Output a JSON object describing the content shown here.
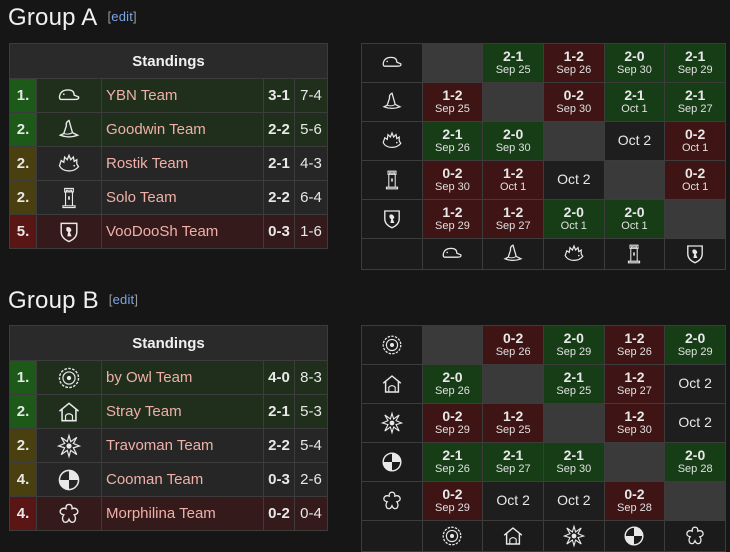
{
  "groups": [
    {
      "title": "Group A",
      "edit": "edit",
      "standings_header": "Standings",
      "teams": [
        {
          "rank": "1.",
          "name": "YBN Team",
          "record": "3-1",
          "maps": "7-4",
          "status": "up",
          "icon": "cap-icon"
        },
        {
          "rank": "2.",
          "name": "Goodwin Team",
          "record": "2-2",
          "maps": "5-6",
          "status": "up",
          "icon": "wizard-hat-icon"
        },
        {
          "rank": "2.",
          "name": "Rostik Team",
          "record": "2-1",
          "maps": "4-3",
          "status": "mid",
          "icon": "hedgehog-icon"
        },
        {
          "rank": "2.",
          "name": "Solo Team",
          "record": "2-2",
          "maps": "6-4",
          "status": "mid",
          "icon": "tower-icon"
        },
        {
          "rank": "5.",
          "name": "VooDooSh Team",
          "record": "0-3",
          "maps": "1-6",
          "status": "down",
          "icon": "shield-icon"
        }
      ],
      "matrix": [
        [
          {
            "t": "self"
          },
          {
            "t": "win",
            "s": "2-1",
            "d": "Sep 25"
          },
          {
            "t": "loss",
            "s": "1-2",
            "d": "Sep 26"
          },
          {
            "t": "win",
            "s": "2-0",
            "d": "Sep 30"
          },
          {
            "t": "win",
            "s": "2-1",
            "d": "Sep 29"
          }
        ],
        [
          {
            "t": "loss",
            "s": "1-2",
            "d": "Sep 25"
          },
          {
            "t": "self"
          },
          {
            "t": "loss",
            "s": "0-2",
            "d": "Sep 30"
          },
          {
            "t": "win",
            "s": "2-1",
            "d": "Oct 1"
          },
          {
            "t": "win",
            "s": "2-1",
            "d": "Sep 27"
          }
        ],
        [
          {
            "t": "win",
            "s": "2-1",
            "d": "Sep 26"
          },
          {
            "t": "win",
            "s": "2-0",
            "d": "Sep 30"
          },
          {
            "t": "self"
          },
          {
            "t": "plain",
            "d": "Oct 2"
          },
          {
            "t": "loss",
            "s": "0-2",
            "d": "Oct 1"
          }
        ],
        [
          {
            "t": "loss",
            "s": "0-2",
            "d": "Sep 30"
          },
          {
            "t": "loss",
            "s": "1-2",
            "d": "Oct 1"
          },
          {
            "t": "plain",
            "d": "Oct 2"
          },
          {
            "t": "self"
          },
          {
            "t": "loss",
            "s": "0-2",
            "d": "Oct 1"
          }
        ],
        [
          {
            "t": "loss",
            "s": "1-2",
            "d": "Sep 29"
          },
          {
            "t": "loss",
            "s": "1-2",
            "d": "Sep 27"
          },
          {
            "t": "win",
            "s": "2-0",
            "d": "Oct 1"
          },
          {
            "t": "win",
            "s": "2-0",
            "d": "Oct 1"
          },
          {
            "t": "self"
          }
        ]
      ]
    },
    {
      "title": "Group B",
      "edit": "edit",
      "standings_header": "Standings",
      "teams": [
        {
          "rank": "1.",
          "name": "by Owl Team",
          "record": "4-0",
          "maps": "8-3",
          "status": "up",
          "icon": "gear-badge-icon"
        },
        {
          "rank": "2.",
          "name": "Stray Team",
          "record": "2-1",
          "maps": "5-3",
          "status": "up",
          "icon": "house-icon"
        },
        {
          "rank": "2.",
          "name": "Travoman Team",
          "record": "2-2",
          "maps": "5-4",
          "status": "mid",
          "icon": "splat-icon"
        },
        {
          "rank": "4.",
          "name": "Cooman Team",
          "record": "0-3",
          "maps": "2-6",
          "status": "mid",
          "icon": "quarter-circle-icon"
        },
        {
          "rank": "4.",
          "name": "Morphilina Team",
          "record": "0-2",
          "maps": "0-4",
          "status": "down",
          "icon": "flower-icon"
        }
      ],
      "matrix": [
        [
          {
            "t": "self"
          },
          {
            "t": "loss",
            "s": "0-2",
            "d": "Sep 26"
          },
          {
            "t": "win",
            "s": "2-0",
            "d": "Sep 29"
          },
          {
            "t": "loss",
            "s": "1-2",
            "d": "Sep 26"
          },
          {
            "t": "win",
            "s": "2-0",
            "d": "Sep 29"
          }
        ],
        [
          {
            "t": "win",
            "s": "2-0",
            "d": "Sep 26"
          },
          {
            "t": "self"
          },
          {
            "t": "win",
            "s": "2-1",
            "d": "Sep 25"
          },
          {
            "t": "loss",
            "s": "1-2",
            "d": "Sep 27"
          },
          {
            "t": "plain",
            "d": "Oct 2"
          }
        ],
        [
          {
            "t": "loss",
            "s": "0-2",
            "d": "Sep 29"
          },
          {
            "t": "loss",
            "s": "1-2",
            "d": "Sep 25"
          },
          {
            "t": "self"
          },
          {
            "t": "loss",
            "s": "1-2",
            "d": "Sep 30"
          },
          {
            "t": "plain",
            "d": "Oct 2"
          }
        ],
        [
          {
            "t": "win",
            "s": "2-1",
            "d": "Sep 26"
          },
          {
            "t": "win",
            "s": "2-1",
            "d": "Sep 27"
          },
          {
            "t": "win",
            "s": "2-1",
            "d": "Sep 30"
          },
          {
            "t": "self"
          },
          {
            "t": "win",
            "s": "2-0",
            "d": "Sep 28"
          }
        ],
        [
          {
            "t": "loss",
            "s": "0-2",
            "d": "Sep 29"
          },
          {
            "t": "plain",
            "d": "Oct 2"
          },
          {
            "t": "plain",
            "d": "Oct 2"
          },
          {
            "t": "loss",
            "s": "0-2",
            "d": "Sep 28"
          },
          {
            "t": "self"
          }
        ]
      ]
    }
  ]
}
